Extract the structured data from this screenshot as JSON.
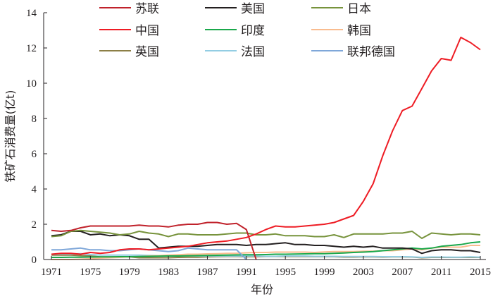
{
  "chart_data": {
    "type": "line",
    "title": "",
    "xlabel": "年份",
    "ylabel": "铁矿石消费量(亿t)",
    "xlim": [
      1971,
      2015
    ],
    "ylim": [
      0,
      14
    ],
    "x_ticks": [
      "1971",
      "1975",
      "1979",
      "1983",
      "1987",
      "1991",
      "1995",
      "1999",
      "2003",
      "2007",
      "2011",
      "2015"
    ],
    "y_ticks": [
      "0",
      "2",
      "4",
      "6",
      "8",
      "10",
      "12",
      "14"
    ],
    "grid": false,
    "legend_position": "top",
    "x": [
      1971,
      1972,
      1973,
      1974,
      1975,
      1976,
      1977,
      1978,
      1979,
      1980,
      1981,
      1982,
      1983,
      1984,
      1985,
      1986,
      1987,
      1988,
      1989,
      1990,
      1991,
      1992,
      1993,
      1994,
      1995,
      1996,
      1997,
      1998,
      1999,
      2000,
      2001,
      2002,
      2003,
      2004,
      2005,
      2006,
      2007,
      2008,
      2009,
      2010,
      2011,
      2012,
      2013,
      2014,
      2015
    ],
    "series": [
      {
        "name": "苏联",
        "color": "#c0222b",
        "values": [
          1.65,
          1.6,
          1.65,
          1.8,
          1.9,
          1.9,
          1.9,
          1.9,
          1.9,
          1.95,
          1.9,
          1.9,
          1.85,
          1.95,
          2.0,
          2.0,
          2.1,
          2.1,
          2.0,
          2.05,
          1.7,
          0,
          null,
          null,
          null,
          null,
          null,
          null,
          null,
          null,
          null,
          null,
          null,
          null,
          null,
          null,
          null,
          null,
          null,
          null,
          null,
          null,
          null,
          null,
          null
        ]
      },
      {
        "name": "美国",
        "color": "#231f20",
        "values": [
          1.35,
          1.4,
          1.6,
          1.6,
          1.4,
          1.45,
          1.35,
          1.4,
          1.35,
          1.15,
          1.15,
          0.65,
          0.7,
          0.75,
          0.75,
          0.75,
          0.8,
          0.85,
          0.85,
          0.85,
          0.8,
          0.85,
          0.85,
          0.9,
          0.95,
          0.85,
          0.85,
          0.8,
          0.8,
          0.75,
          0.7,
          0.75,
          0.7,
          0.75,
          0.65,
          0.65,
          0.65,
          0.6,
          0.35,
          0.5,
          0.55,
          0.55,
          0.5,
          0.5,
          0.4
        ]
      },
      {
        "name": "日本",
        "color": "#77933c",
        "values": [
          1.3,
          1.35,
          1.6,
          1.65,
          1.6,
          1.55,
          1.5,
          1.4,
          1.45,
          1.6,
          1.5,
          1.45,
          1.3,
          1.45,
          1.45,
          1.4,
          1.4,
          1.4,
          1.45,
          1.5,
          1.5,
          1.4,
          1.4,
          1.45,
          1.35,
          1.35,
          1.35,
          1.3,
          1.3,
          1.4,
          1.25,
          1.45,
          1.45,
          1.45,
          1.45,
          1.5,
          1.5,
          1.6,
          1.2,
          1.5,
          1.45,
          1.4,
          1.45,
          1.45,
          1.4
        ]
      },
      {
        "name": "中国",
        "color": "#ee1c24",
        "values": [
          0.3,
          0.35,
          0.35,
          0.3,
          0.4,
          0.35,
          0.4,
          0.55,
          0.6,
          0.6,
          0.55,
          0.6,
          0.65,
          0.7,
          0.75,
          0.85,
          0.95,
          1.0,
          1.05,
          1.15,
          1.25,
          1.45,
          1.7,
          1.9,
          1.85,
          1.85,
          1.9,
          1.95,
          2.0,
          2.1,
          2.3,
          2.5,
          3.3,
          4.3,
          5.9,
          7.3,
          8.45,
          8.7,
          9.7,
          10.7,
          11.4,
          11.3,
          12.6,
          12.3,
          11.9
        ]
      },
      {
        "name": "印度",
        "color": "#1aa84b",
        "values": [
          0.12,
          0.12,
          0.13,
          0.13,
          0.14,
          0.15,
          0.15,
          0.16,
          0.16,
          0.17,
          0.18,
          0.19,
          0.2,
          0.2,
          0.21,
          0.22,
          0.23,
          0.24,
          0.25,
          0.26,
          0.27,
          0.27,
          0.28,
          0.3,
          0.3,
          0.31,
          0.32,
          0.33,
          0.33,
          0.35,
          0.37,
          0.4,
          0.42,
          0.45,
          0.5,
          0.55,
          0.6,
          0.65,
          0.6,
          0.65,
          0.75,
          0.8,
          0.85,
          0.95,
          1.0
        ]
      },
      {
        "name": "韩国",
        "color": "#f9bc8f",
        "values": [
          0,
          0,
          0,
          0.02,
          0.05,
          0.08,
          0.1,
          0.12,
          0.15,
          0.17,
          0.2,
          0.22,
          0.25,
          0.27,
          0.3,
          0.3,
          0.32,
          0.33,
          0.35,
          0.35,
          0.38,
          0.4,
          0.4,
          0.42,
          0.42,
          0.42,
          0.42,
          0.4,
          0.43,
          0.45,
          0.45,
          0.45,
          0.47,
          0.47,
          0.5,
          0.5,
          0.55,
          0.6,
          0.55,
          0.65,
          0.7,
          0.7,
          0.7,
          0.8,
          0.8
        ]
      },
      {
        "name": "英国",
        "color": "#8c7f46",
        "values": [
          0.25,
          0.25,
          0.25,
          0.22,
          0.2,
          0.15,
          0.15,
          0.15,
          0.15,
          0.1,
          0.1,
          0.1,
          0.1,
          0.12,
          0.13,
          0.13,
          0.15,
          0.16,
          0.17,
          0.17,
          0.16,
          0.16,
          0.17,
          0.17,
          0.17,
          0.17,
          0.17,
          0.16,
          0.16,
          0.16,
          0.14,
          0.14,
          0.15,
          0.15,
          0.14,
          0.15,
          0.15,
          0.14,
          0.1,
          0.12,
          0.12,
          0.12,
          0.12,
          0.12,
          0.12
        ]
      },
      {
        "name": "法国",
        "color": "#93cde3",
        "values": [
          0.3,
          0.32,
          0.32,
          0.33,
          0.28,
          0.25,
          0.25,
          0.25,
          0.25,
          0.25,
          0.23,
          0.22,
          0.2,
          0.22,
          0.22,
          0.2,
          0.2,
          0.2,
          0.2,
          0.2,
          0.2,
          0.2,
          0.18,
          0.18,
          0.2,
          0.2,
          0.2,
          0.18,
          0.18,
          0.18,
          0.17,
          0.17,
          0.17,
          0.17,
          0.16,
          0.16,
          0.16,
          0.15,
          0.12,
          0.14,
          0.14,
          0.13,
          0.13,
          0.15,
          0.13
        ]
      },
      {
        "name": "联邦德国",
        "color": "#7fa7d9",
        "values": [
          0.55,
          0.55,
          0.6,
          0.65,
          0.55,
          0.55,
          0.5,
          0.5,
          0.55,
          0.6,
          0.55,
          0.5,
          0.45,
          0.5,
          0.65,
          0.6,
          0.55,
          0.55,
          0.55,
          0.55,
          0,
          null,
          null,
          null,
          null,
          null,
          null,
          null,
          null,
          null,
          null,
          null,
          null,
          null,
          null,
          null,
          null,
          null,
          null,
          null,
          null,
          null,
          null,
          null,
          null
        ]
      }
    ]
  }
}
